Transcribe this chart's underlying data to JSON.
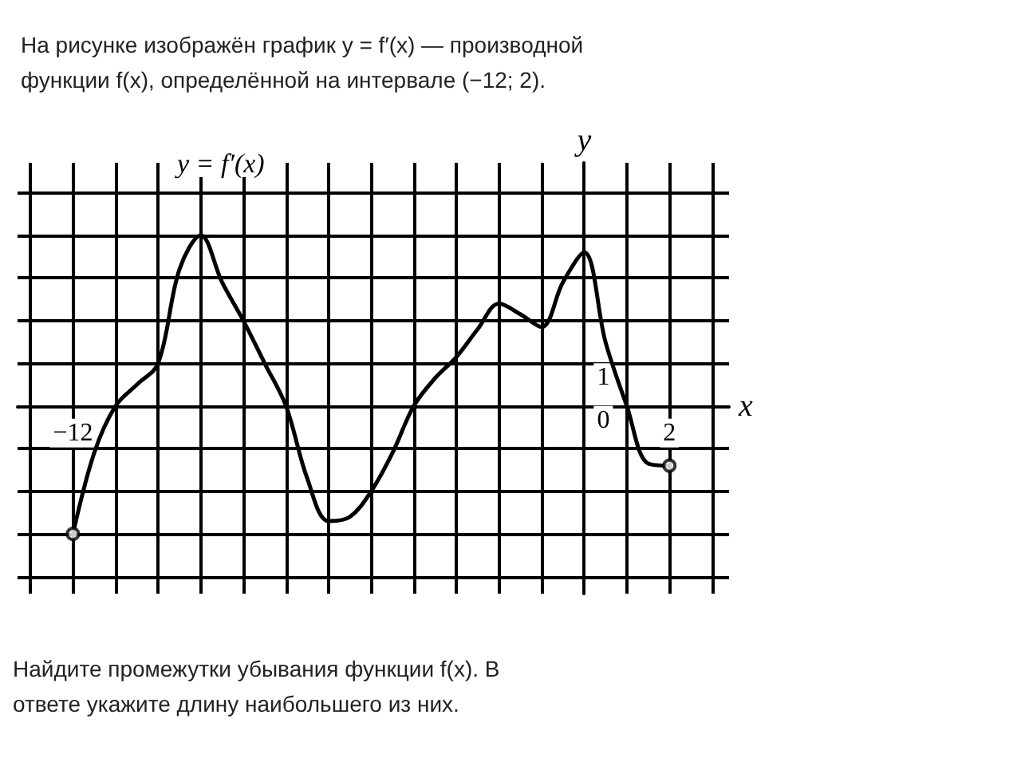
{
  "chart_data": {
    "type": "line",
    "title": "На рисунке изображён график y = f′(x) — производной функции f(x), определённой на интервале (−12; 2).",
    "xlabel": "x",
    "ylabel": "y",
    "annotations": [
      "y = f′(x)",
      "Найдите промежутки убывания функции f(x). В ответе укажите длину наибольшего из них."
    ],
    "xlim": [
      -13.3,
      3.4
    ],
    "ylim": [
      -4.4,
      5.7
    ],
    "xticks": [
      {
        "value": -13,
        "label": null
      },
      {
        "value": -12,
        "label": "−12"
      },
      {
        "value": -11,
        "label": null
      },
      {
        "value": -10,
        "label": null
      },
      {
        "value": -9,
        "label": null
      },
      {
        "value": -8,
        "label": null
      },
      {
        "value": -7,
        "label": null
      },
      {
        "value": -6,
        "label": null
      },
      {
        "value": -5,
        "label": null
      },
      {
        "value": -4,
        "label": null
      },
      {
        "value": -3,
        "label": null
      },
      {
        "value": -2,
        "label": null
      },
      {
        "value": -1,
        "label": null
      },
      {
        "value": 0,
        "label": null
      },
      {
        "value": 1,
        "label": null
      },
      {
        "value": 2,
        "label": "2"
      },
      {
        "value": 3,
        "label": null
      }
    ],
    "yticks": [
      {
        "value": -4,
        "label": null
      },
      {
        "value": -3,
        "label": null
      },
      {
        "value": -2,
        "label": null
      },
      {
        "value": -1,
        "label": null
      },
      {
        "value": 0,
        "label": "0"
      },
      {
        "value": 1,
        "label": "1"
      },
      {
        "value": 2,
        "label": null
      },
      {
        "value": 3,
        "label": null
      },
      {
        "value": 4,
        "label": null
      },
      {
        "value": 5,
        "label": null
      }
    ],
    "grid": true,
    "marker": "none",
    "line_style": "solid",
    "series": [
      {
        "color": "#000000",
        "x": [
          -12,
          -11.5,
          -11,
          -10.5,
          -10,
          -9.5,
          -9,
          -8.5,
          -8,
          -7.5,
          -7,
          -6.5,
          -6,
          -5.5,
          -5,
          -4.5,
          -4,
          -3.5,
          -3,
          -2.5,
          -2,
          -1.5,
          -1,
          -0.5,
          0,
          0.5,
          1,
          1.5,
          2
        ],
        "values": [
          -3,
          -1.1,
          0,
          0.5,
          1,
          3.2,
          4,
          2.9,
          2,
          1,
          0,
          -1.7,
          -2.7,
          -2.6,
          -2,
          -1.1,
          0,
          0.65,
          1.15,
          1.8,
          2.4,
          2.15,
          1.85,
          2.9,
          3.6,
          1.5,
          0,
          -1.35,
          -1.4
        ]
      },
      {
        "type": "scatter",
        "marker": "circle",
        "color": "#000000",
        "x": [
          -12,
          2
        ],
        "values": [
          -3,
          -1.4
        ]
      }
    ]
  }
}
